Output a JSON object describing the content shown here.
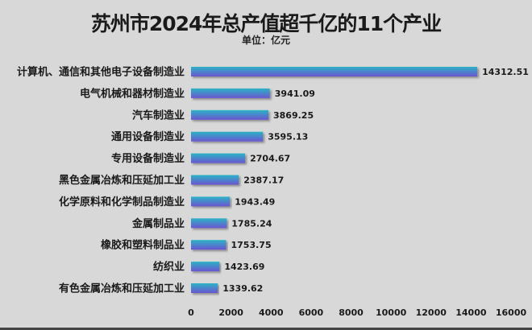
{
  "chart_data": {
    "type": "bar",
    "orientation": "horizontal",
    "title": "苏州市2024年总产值超千亿的11个产业",
    "subtitle": "单位：亿元",
    "categories": [
      "计算机、通信和其他电子设备制造业",
      "电气机械和器材制造业",
      "汽车制造业",
      "通用设备制造业",
      "专用设备制造业",
      "黑色金属冶炼和压延加工业",
      "化学原料和化学制品制造业",
      "金属制品业",
      "橡胶和塑料制品业",
      "纺织业",
      "有色金属冶炼和压延加工业"
    ],
    "values": [
      14312.51,
      3941.09,
      3869.25,
      3595.13,
      2704.67,
      2387.17,
      1943.49,
      1785.24,
      1753.75,
      1423.69,
      1339.62
    ],
    "value_labels": [
      "14312.51",
      "3941.09",
      "3869.25",
      "3595.13",
      "2704.67",
      "2387.17",
      "1943.49",
      "1785.24",
      "1753.75",
      "1423.69",
      "1339.62"
    ],
    "xlim": [
      0,
      16000
    ],
    "xticks": [
      "0",
      "2000",
      "4000",
      "6000",
      "8000",
      "10000",
      "12000",
      "14000",
      "16000"
    ],
    "grid": false,
    "legend": "none",
    "colors": {
      "bar_top": "#2bb3c6",
      "bar_bottom": "#6b55d0",
      "background": "#d8d8d8"
    }
  }
}
